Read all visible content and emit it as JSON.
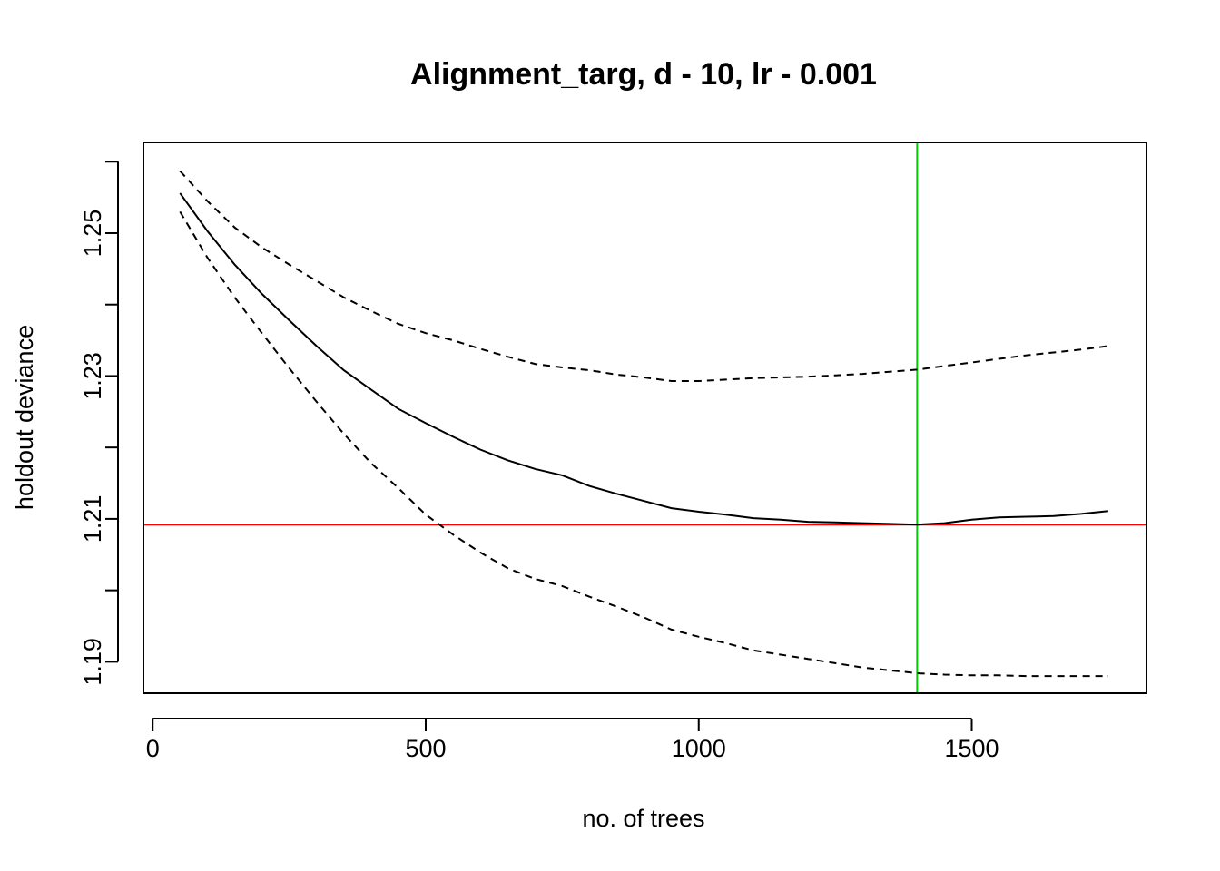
{
  "chart_data": {
    "type": "line",
    "title": "Alignment_targ, d - 10, lr - 0.001",
    "xlabel": "no. of trees",
    "ylabel": "holdout deviance",
    "xlim": [
      -17,
      1820
    ],
    "ylim": [
      1.1856,
      1.2627
    ],
    "x_ticks": [
      0,
      500,
      1000,
      1500
    ],
    "x_tick_labels": [
      "0",
      "500",
      "1000",
      "1500"
    ],
    "y_ticks": [
      1.19,
      1.2,
      1.21,
      1.22,
      1.23,
      1.24,
      1.25,
      1.26
    ],
    "y_tick_labels": [
      "1.19",
      "",
      "1.21",
      "",
      "1.23",
      "",
      "1.25",
      ""
    ],
    "grid": false,
    "legend": "none",
    "x": [
      50,
      100,
      150,
      200,
      250,
      300,
      350,
      400,
      450,
      500,
      550,
      600,
      650,
      700,
      750,
      800,
      850,
      900,
      950,
      1000,
      1050,
      1100,
      1150,
      1200,
      1250,
      1300,
      1350,
      1400,
      1450,
      1500,
      1550,
      1600,
      1650,
      1700,
      1750
    ],
    "series": [
      {
        "style": "solid",
        "color": "#000000",
        "values": [
          1.2556,
          1.2503,
          1.2456,
          1.2415,
          1.2378,
          1.2342,
          1.2308,
          1.2281,
          1.2254,
          1.2234,
          1.2215,
          1.2197,
          1.2182,
          1.217,
          1.2161,
          1.2146,
          1.2135,
          1.2125,
          1.2115,
          1.211,
          1.2106,
          1.2101,
          1.2099,
          1.2096,
          1.2095,
          1.2094,
          1.2093,
          1.2092,
          1.2094,
          1.2099,
          1.2102,
          1.2103,
          1.2104,
          1.2107,
          1.2111
        ]
      },
      {
        "style": "dashed",
        "color": "#000000",
        "values": [
          1.2587,
          1.2545,
          1.2508,
          1.248,
          1.2456,
          1.2433,
          1.241,
          1.2391,
          1.2373,
          1.236,
          1.235,
          1.2338,
          1.2327,
          1.2317,
          1.2312,
          1.2308,
          1.2302,
          1.2298,
          1.2293,
          1.2293,
          1.2295,
          1.2297,
          1.2298,
          1.2299,
          1.2301,
          1.2303,
          1.2306,
          1.2309,
          1.2314,
          1.2319,
          1.2324,
          1.2329,
          1.2333,
          1.2337,
          1.2342
        ]
      },
      {
        "style": "dashed",
        "color": "#000000",
        "values": [
          1.253,
          1.2466,
          1.241,
          1.236,
          1.2311,
          1.2264,
          1.2219,
          1.2178,
          1.2143,
          1.2106,
          1.2078,
          1.2053,
          1.2031,
          1.2016,
          1.2006,
          1.1991,
          1.1977,
          1.1962,
          1.1945,
          1.1935,
          1.1926,
          1.1916,
          1.191,
          1.1904,
          1.1898,
          1.1892,
          1.1888,
          1.1884,
          1.1882,
          1.1881,
          1.1881,
          1.188,
          1.188,
          1.188,
          1.188
        ]
      }
    ],
    "reference_lines": [
      {
        "orientation": "horizontal",
        "value": 1.2092,
        "color": "#ff0000"
      },
      {
        "orientation": "vertical",
        "value": 1400,
        "color": "#00cd00"
      }
    ]
  }
}
